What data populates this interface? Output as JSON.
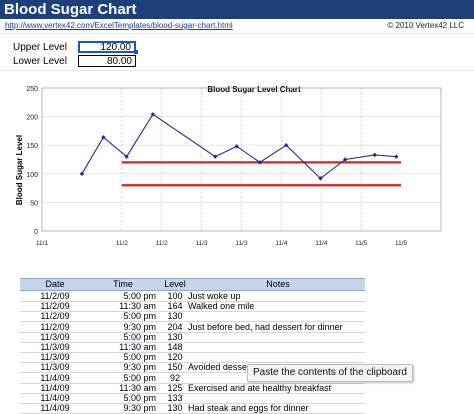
{
  "header": {
    "title": "Blood Sugar Chart",
    "url": "http://www.vertex42.com/ExcelTemplates/blood-sugar-chart.html",
    "copyright": "© 2010 Vertex42 LLC"
  },
  "levels": {
    "upper_label": "Upper Level",
    "upper_value": "120.00",
    "lower_label": "Lower Level",
    "lower_value": "80.00"
  },
  "chart_data": {
    "type": "line",
    "title": "Blood Sugar Level Chart",
    "ylabel": "Blood Sugar Level",
    "xlabel": "",
    "ylim": [
      0,
      250
    ],
    "yticks": [
      "0",
      "50",
      "100",
      "150",
      "200",
      "250"
    ],
    "xticks": [
      "11/1",
      "11/2",
      "11/2",
      "11/3",
      "11/3",
      "11/4",
      "11/4",
      "11/5",
      "11/5"
    ],
    "series": [
      {
        "values": [
          {
            "x": 1.5,
            "y": 100
          },
          {
            "x": 1.77,
            "y": 164
          },
          {
            "x": 2.06,
            "y": 130
          },
          {
            "x": 2.39,
            "y": 204
          },
          {
            "x": 3.17,
            "y": 130
          },
          {
            "x": 3.44,
            "y": 148
          },
          {
            "x": 3.73,
            "y": 120
          },
          {
            "x": 4.06,
            "y": 150
          },
          {
            "x": 4.49,
            "y": 92
          },
          {
            "x": 4.8,
            "y": 125
          },
          {
            "x": 5.17,
            "y": 133
          },
          {
            "x": 5.44,
            "y": 130
          }
        ],
        "color": "#1f2f8f"
      }
    ],
    "reference_lines": [
      {
        "y": 120,
        "color": "#e02020"
      },
      {
        "y": 80,
        "color": "#e02020"
      }
    ],
    "grid": true
  },
  "table": {
    "headers": [
      "Date",
      "Time",
      "Level",
      "Notes"
    ],
    "rows": [
      {
        "date": "11/2/09",
        "time": "5:00 pm",
        "level": "100",
        "notes": "Just woke up"
      },
      {
        "date": "11/2/09",
        "time": "11:30 am",
        "level": "164",
        "notes": "Walked one mile"
      },
      {
        "date": "11/2/09",
        "time": "5:00 pm",
        "level": "130",
        "notes": ""
      },
      {
        "date": "11/2/09",
        "time": "9:30 pm",
        "level": "204",
        "notes": "Just before bed, had dessert for dinner"
      },
      {
        "date": "11/3/09",
        "time": "5:00 pm",
        "level": "130",
        "notes": ""
      },
      {
        "date": "11/3/09",
        "time": "11:30 am",
        "level": "148",
        "notes": ""
      },
      {
        "date": "11/3/09",
        "time": "5:00 pm",
        "level": "120",
        "notes": ""
      },
      {
        "date": "11/3/09",
        "time": "9:30 pm",
        "level": "150",
        "notes": "Avoided dessert"
      },
      {
        "date": "11/4/09",
        "time": "5:00 pm",
        "level": "92",
        "notes": ""
      },
      {
        "date": "11/4/09",
        "time": "11:30 am",
        "level": "125",
        "notes": "Exercised and ate healthy breakfast"
      },
      {
        "date": "11/4/09",
        "time": "5:00 pm",
        "level": "133",
        "notes": ""
      },
      {
        "date": "11/4/09",
        "time": "9:30 pm",
        "level": "130",
        "notes": "Had steak and eggs for dinner"
      }
    ]
  },
  "tooltip": {
    "text": "Paste the contents of the clipboard"
  }
}
